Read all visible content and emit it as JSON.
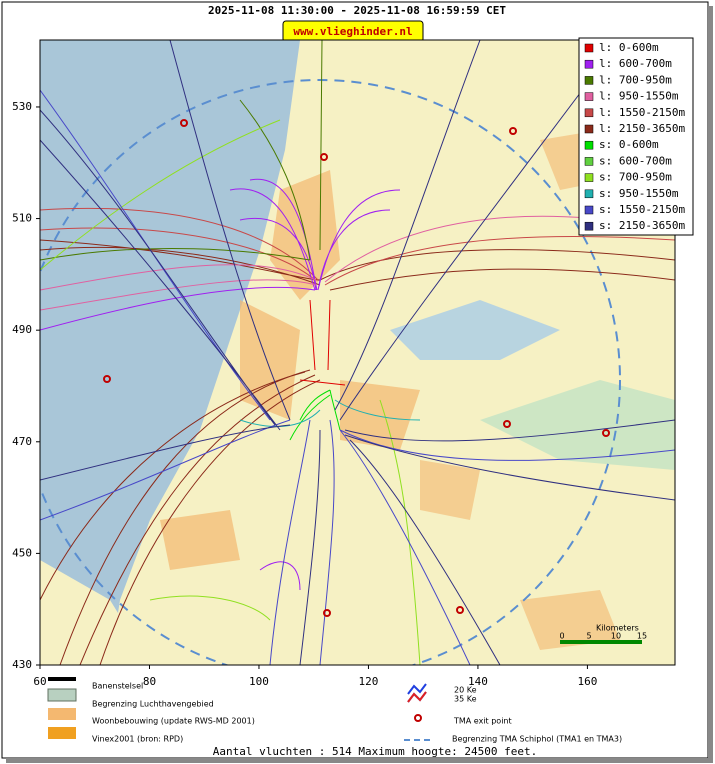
{
  "header": {
    "title": "2025-11-08 11:30:00 - 2025-11-08 16:59:59 CET",
    "badge": "www.vlieghinder.nl"
  },
  "map": {
    "xlim": [
      60,
      176
    ],
    "ylim": [
      430,
      542
    ],
    "xticks": [
      60,
      80,
      100,
      120,
      140,
      160
    ],
    "yticks": [
      430,
      450,
      470,
      490,
      510,
      530
    ],
    "scale_label": "Kilometers",
    "scale_ticks": [
      "0",
      "5",
      "10",
      "15"
    ],
    "legend": [
      {
        "label": "l: 0-600m",
        "color": "#e00000"
      },
      {
        "label": "l: 600-700m",
        "color": "#a020f0"
      },
      {
        "label": "l: 700-950m",
        "color": "#4a7a00"
      },
      {
        "label": "l: 950-1550m",
        "color": "#e060a0"
      },
      {
        "label": "l: 1550-2150m",
        "color": "#c84848"
      },
      {
        "label": "l: 2150-3650m",
        "color": "#8b2a1a"
      },
      {
        "label": "s: 0-600m",
        "color": "#00e000"
      },
      {
        "label": "s: 600-700m",
        "color": "#60d040"
      },
      {
        "label": "s: 700-950m",
        "color": "#90e020"
      },
      {
        "label": "s: 950-1550m",
        "color": "#20b0b0"
      },
      {
        "label": "s: 1550-2150m",
        "color": "#4848c8"
      },
      {
        "label": "s: 2150-3650m",
        "color": "#303080"
      }
    ]
  },
  "key": {
    "runways": "Banenstelsel",
    "airport": "Begrenzing Luchthavengebied",
    "housing": "Woonbebouwing (update RWS-MD 2001)",
    "vinex": "Vinex2001 (bron: RPD)",
    "ke20": "20 Ke",
    "ke35": "35 Ke",
    "exit": "TMA exit point",
    "tma": "Begrenzing TMA Schiphol  (TMA1 en TMA3)"
  },
  "footer": "Aantal vluchten : 514 Maximum hoogte: 24500 feet."
}
